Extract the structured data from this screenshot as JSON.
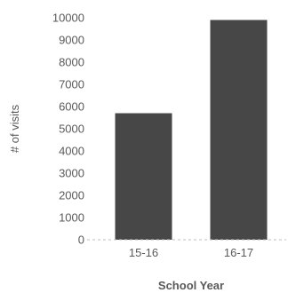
{
  "chart_data": {
    "type": "bar",
    "title": "",
    "xlabel": "School Year",
    "ylabel": "# of visits",
    "categories": [
      "15-16",
      "16-17"
    ],
    "values": [
      5700,
      9900
    ],
    "ylim": [
      0,
      10000
    ],
    "yticks": [
      "0",
      "1000",
      "2000",
      "3000",
      "4000",
      "5000",
      "6000",
      "7000",
      "8000",
      "9000",
      "10000"
    ],
    "grid": false,
    "legend": "none",
    "colors": {
      "bar": "#474747",
      "baseline": "#bdbdbd",
      "text": "#5a5a5a"
    }
  }
}
